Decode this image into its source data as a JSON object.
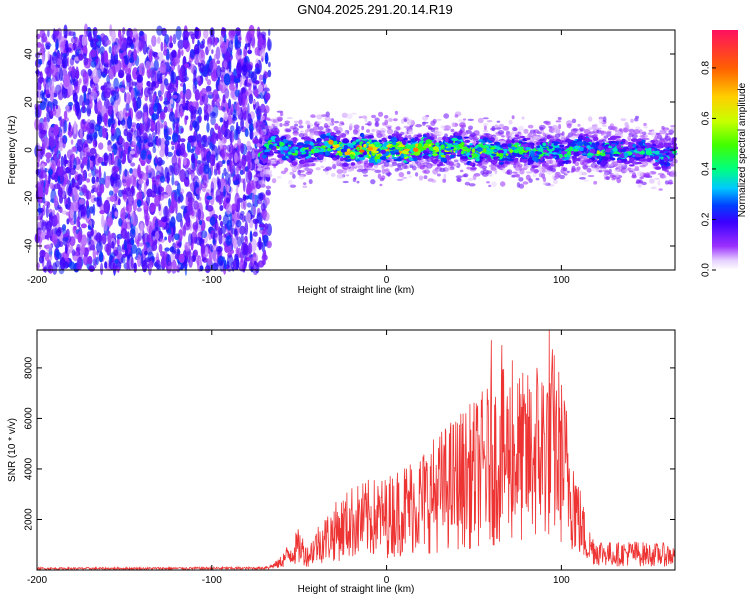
{
  "title": "GN04.2025.291.20.14.R19",
  "chart_data": [
    {
      "type": "heatmap",
      "xlabel": "Height of straight line (km)",
      "ylabel": "Frequency (Hz)",
      "xlim": [
        -200,
        165
      ],
      "ylim": [
        -50,
        50
      ],
      "x_ticks": [
        -200,
        -100,
        0,
        100
      ],
      "y_ticks": [
        -40,
        -20,
        0,
        20,
        40
      ],
      "colorbar": {
        "label": "Normalized spectral amplitude",
        "range": [
          0,
          0.95
        ],
        "ticks": [
          0.0,
          0.2,
          0.4,
          0.6,
          0.8
        ],
        "tick_labels": [
          "0.0",
          "0.2",
          "0.4",
          "0.6",
          "0.8"
        ]
      },
      "noise_region": {
        "x_range": [
          -200,
          -67
        ],
        "freq_range": [
          -50,
          50
        ],
        "amplitude": [
          0.05,
          0.25
        ]
      },
      "signal_band": {
        "x_range": [
          -75,
          165
        ],
        "center_freq": [
          [
            -75,
            -3
          ],
          [
            -70,
            -2
          ],
          [
            -65,
            2
          ],
          [
            -60,
            3
          ],
          [
            -55,
            0
          ],
          [
            -50,
            -2
          ],
          [
            -45,
            0
          ],
          [
            -40,
            2
          ],
          [
            -30,
            1
          ],
          [
            -20,
            0
          ],
          [
            -10,
            0
          ],
          [
            0,
            0
          ],
          [
            10,
            0
          ],
          [
            20,
            1
          ],
          [
            30,
            0
          ],
          [
            40,
            1
          ],
          [
            50,
            0
          ],
          [
            60,
            -1
          ],
          [
            70,
            0
          ],
          [
            80,
            -1
          ],
          [
            90,
            0
          ],
          [
            100,
            -1
          ],
          [
            110,
            1
          ],
          [
            120,
            0
          ],
          [
            130,
            -1
          ],
          [
            140,
            0
          ],
          [
            150,
            -1
          ],
          [
            160,
            -2
          ],
          [
            165,
            -2
          ]
        ],
        "peak_amplitude": [
          [
            -75,
            0.45
          ],
          [
            -60,
            0.5
          ],
          [
            -40,
            0.55
          ],
          [
            -30,
            0.75
          ],
          [
            -10,
            0.85
          ],
          [
            0,
            0.9
          ],
          [
            20,
            0.8
          ],
          [
            40,
            0.65
          ],
          [
            60,
            0.6
          ],
          [
            80,
            0.55
          ],
          [
            100,
            0.5
          ],
          [
            120,
            0.55
          ],
          [
            140,
            0.45
          ],
          [
            165,
            0.4
          ]
        ]
      },
      "grid": false
    },
    {
      "type": "line",
      "xlabel": "Height of straight line (km)",
      "ylabel": "SNR (10 * v/v)",
      "xlim": [
        -200,
        165
      ],
      "ylim": [
        0,
        9500
      ],
      "x_ticks": [
        -200,
        -100,
        0,
        100
      ],
      "y_ticks": [
        2000,
        4000,
        6000,
        8000
      ],
      "series_color": "#ee3333",
      "envelope": [
        [
          -200,
          60
        ],
        [
          -150,
          60
        ],
        [
          -100,
          70
        ],
        [
          -80,
          70
        ],
        [
          -70,
          80
        ],
        [
          -62,
          350
        ],
        [
          -55,
          1000
        ],
        [
          -50,
          1400
        ],
        [
          -45,
          800
        ],
        [
          -40,
          1500
        ],
        [
          -30,
          2200
        ],
        [
          -20,
          2800
        ],
        [
          -10,
          3000
        ],
        [
          0,
          3100
        ],
        [
          10,
          3600
        ],
        [
          20,
          4000
        ],
        [
          30,
          4600
        ],
        [
          40,
          5200
        ],
        [
          50,
          5600
        ],
        [
          60,
          6300
        ],
        [
          70,
          6800
        ],
        [
          80,
          6500
        ],
        [
          90,
          7200
        ],
        [
          95,
          7500
        ],
        [
          100,
          6500
        ],
        [
          105,
          5000
        ],
        [
          110,
          3000
        ],
        [
          115,
          1500
        ],
        [
          120,
          1100
        ],
        [
          130,
          900
        ],
        [
          140,
          1000
        ],
        [
          150,
          900
        ],
        [
          160,
          900
        ],
        [
          165,
          800
        ]
      ],
      "peaks": [
        [
          60,
          9100
        ],
        [
          66,
          8900
        ],
        [
          72,
          8300
        ],
        [
          86,
          8000
        ],
        [
          93,
          9500
        ]
      ],
      "grid": false
    }
  ]
}
